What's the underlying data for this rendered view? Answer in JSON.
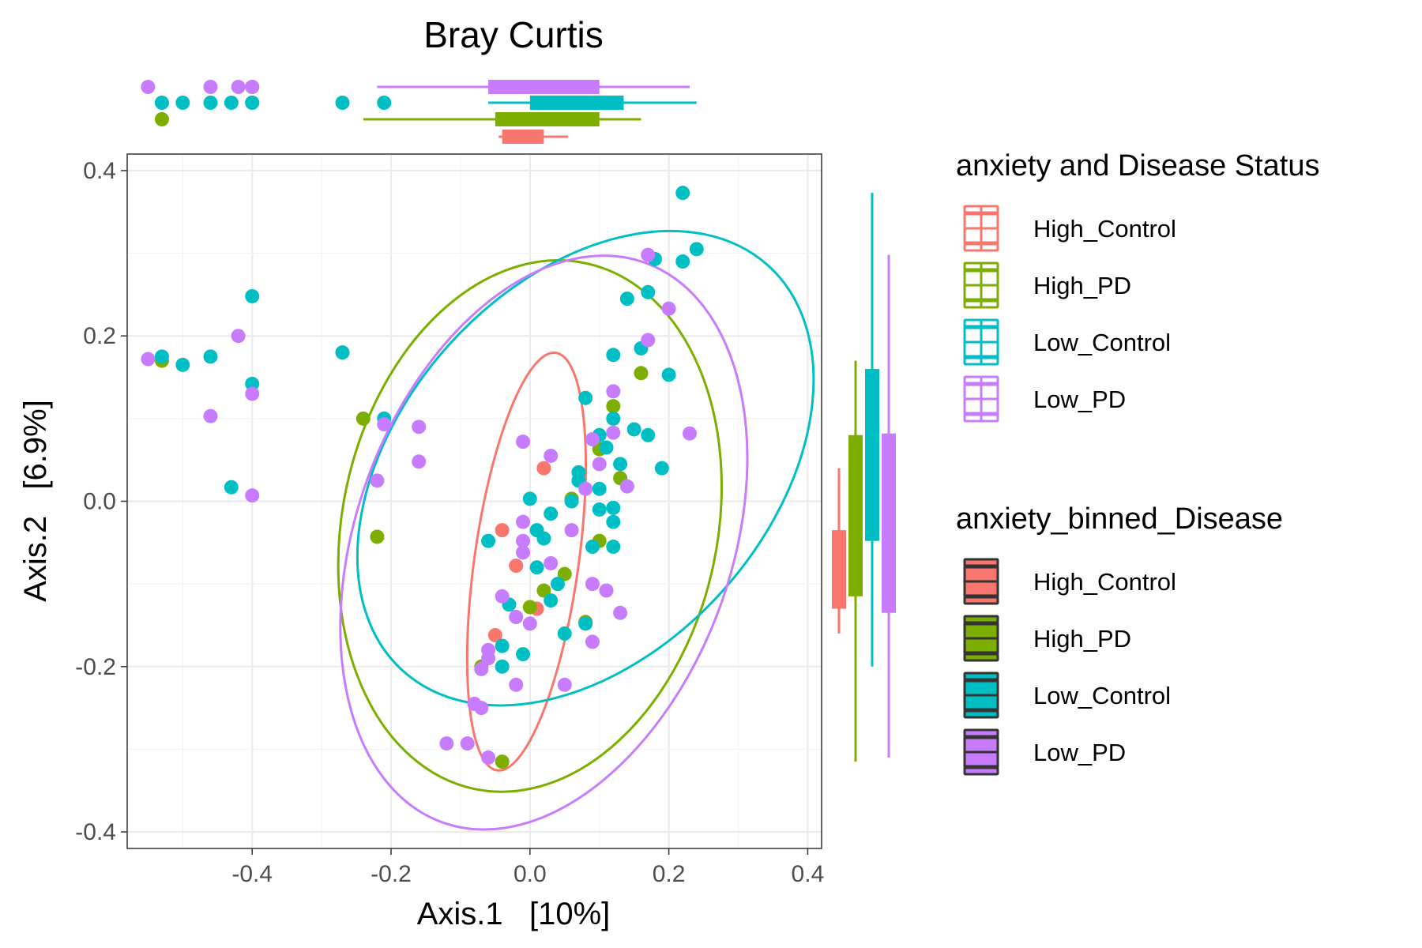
{
  "chart_data": {
    "type": "scatter",
    "title": "Bray Curtis",
    "xlabel": "Axis.1   [10%]",
    "ylabel": "Axis.2   [6.9%]",
    "xlim": [
      -0.58,
      0.42
    ],
    "ylim": [
      -0.42,
      0.42
    ],
    "x_ticks": [
      -0.4,
      -0.2,
      0.0,
      0.2,
      0.4
    ],
    "x_tick_labels": [
      "-0.4",
      "-0.2",
      "0.0",
      "0.2",
      "0.4"
    ],
    "y_ticks": [
      -0.4,
      -0.2,
      0.0,
      0.2,
      0.4
    ],
    "y_tick_labels": [
      "-0.4",
      "-0.2",
      "0.0",
      "0.2",
      "0.4"
    ],
    "grid": true,
    "legend_placement": "right",
    "legends": [
      {
        "title": "anxiety and Disease Status",
        "style": "outline",
        "items": [
          "High_Control",
          "High_PD",
          "Low_Control",
          "Low_PD"
        ]
      },
      {
        "title": "anxiety_binned_Disease",
        "style": "filled",
        "items": [
          "High_Control",
          "High_PD",
          "Low_Control",
          "Low_PD"
        ]
      }
    ],
    "series": [
      {
        "name": "High_Control",
        "color": "#F8766D",
        "points": [
          [
            0.02,
            0.04
          ],
          [
            -0.04,
            -0.035
          ],
          [
            -0.02,
            -0.078
          ],
          [
            0.01,
            -0.13
          ],
          [
            -0.05,
            -0.162
          ]
        ],
        "ellipse": {
          "center": [
            -0.005,
            -0.073
          ],
          "rx": 0.075,
          "ry": 0.255,
          "rotation_deg": 8
        },
        "box_x": {
          "whisker": [
            -0.045,
            0.055
          ],
          "box": [
            -0.04,
            0.02
          ],
          "median": 0.0
        },
        "box_y": {
          "whisker": [
            -0.16,
            0.04
          ],
          "box": [
            -0.13,
            -0.035
          ],
          "median": -0.08
        }
      },
      {
        "name": "High_PD",
        "color": "#7CAE00",
        "points": [
          [
            -0.53,
            0.17
          ],
          [
            -0.24,
            0.1
          ],
          [
            -0.22,
            -0.043
          ],
          [
            0.12,
            0.115
          ],
          [
            0.16,
            0.155
          ],
          [
            0.1,
            0.063
          ],
          [
            0.13,
            0.028
          ],
          [
            0.06,
            0.003
          ],
          [
            0.1,
            -0.048
          ],
          [
            0.05,
            -0.088
          ],
          [
            0.02,
            -0.108
          ],
          [
            0.0,
            -0.128
          ],
          [
            0.08,
            -0.146
          ],
          [
            -0.07,
            -0.2
          ],
          [
            -0.04,
            -0.315
          ]
        ],
        "outliers": [
          -0.53
        ],
        "ellipse": {
          "center": [
            0.0,
            -0.03
          ],
          "rx": 0.27,
          "ry": 0.325,
          "rotation_deg": 12
        },
        "box_x": {
          "whisker": [
            -0.24,
            0.16
          ],
          "box": [
            -0.05,
            0.1
          ],
          "median": 0.05
        },
        "box_y": {
          "whisker": [
            -0.315,
            0.17
          ],
          "box": [
            -0.115,
            0.08
          ],
          "median": 0.0
        }
      },
      {
        "name": "Low_Control",
        "color": "#00BFC4",
        "points": [
          [
            -0.53,
            0.175
          ],
          [
            -0.5,
            0.165
          ],
          [
            -0.46,
            0.175
          ],
          [
            -0.4,
            0.248
          ],
          [
            -0.4,
            0.142
          ],
          [
            -0.43,
            0.017
          ],
          [
            -0.27,
            0.18
          ],
          [
            -0.21,
            0.1
          ],
          [
            0.22,
            0.373
          ],
          [
            0.24,
            0.305
          ],
          [
            0.18,
            0.293
          ],
          [
            0.22,
            0.29
          ],
          [
            0.17,
            0.253
          ],
          [
            0.14,
            0.245
          ],
          [
            0.16,
            0.185
          ],
          [
            0.12,
            0.177
          ],
          [
            0.2,
            0.153
          ],
          [
            0.08,
            0.125
          ],
          [
            0.12,
            0.1
          ],
          [
            0.15,
            0.087
          ],
          [
            0.1,
            0.08
          ],
          [
            0.17,
            0.08
          ],
          [
            0.19,
            0.04
          ],
          [
            0.11,
            0.065
          ],
          [
            0.13,
            0.045
          ],
          [
            0.07,
            0.035
          ],
          [
            0.1,
            0.015
          ],
          [
            0.07,
            0.025
          ],
          [
            0.0,
            0.003
          ],
          [
            0.06,
            0.0
          ],
          [
            0.12,
            -0.025
          ],
          [
            0.1,
            -0.01
          ],
          [
            0.12,
            -0.008
          ],
          [
            0.03,
            -0.015
          ],
          [
            -0.06,
            -0.048
          ],
          [
            0.01,
            -0.035
          ],
          [
            0.02,
            -0.045
          ],
          [
            0.09,
            -0.055
          ],
          [
            0.12,
            -0.055
          ],
          [
            0.03,
            -0.12
          ],
          [
            0.04,
            -0.1
          ],
          [
            0.01,
            -0.08
          ],
          [
            -0.03,
            -0.125
          ],
          [
            0.05,
            -0.16
          ],
          [
            0.08,
            -0.148
          ],
          [
            -0.04,
            -0.175
          ],
          [
            -0.04,
            -0.2
          ],
          [
            -0.01,
            -0.185
          ]
        ],
        "outliers": [
          -0.53,
          -0.5,
          -0.46,
          -0.43,
          -0.4,
          -0.4,
          -0.27,
          -0.21
        ],
        "ellipse": {
          "center": [
            0.08,
            0.04
          ],
          "rx": 0.265,
          "ry": 0.33,
          "rotation_deg": 42
        },
        "box_x": {
          "whisker": [
            -0.06,
            0.24
          ],
          "box": [
            0.0,
            0.135
          ],
          "median": 0.07
        },
        "box_y": {
          "whisker": [
            -0.2,
            0.373
          ],
          "box": [
            -0.048,
            0.16
          ],
          "median": 0.015
        }
      },
      {
        "name": "Low_PD",
        "color": "#C77CFF",
        "points": [
          [
            -0.55,
            0.172
          ],
          [
            -0.42,
            0.2
          ],
          [
            -0.4,
            0.13
          ],
          [
            -0.46,
            0.103
          ],
          [
            -0.4,
            0.007
          ],
          [
            -0.21,
            0.093
          ],
          [
            -0.16,
            0.09
          ],
          [
            -0.16,
            0.048
          ],
          [
            -0.22,
            0.025
          ],
          [
            0.17,
            0.298
          ],
          [
            0.2,
            0.233
          ],
          [
            0.17,
            0.195
          ],
          [
            0.23,
            0.082
          ],
          [
            0.12,
            0.133
          ],
          [
            0.12,
            0.083
          ],
          [
            0.09,
            0.075
          ],
          [
            0.03,
            0.055
          ],
          [
            -0.01,
            0.072
          ],
          [
            0.1,
            0.045
          ],
          [
            0.08,
            0.015
          ],
          [
            0.14,
            0.018
          ],
          [
            -0.01,
            -0.048
          ],
          [
            -0.01,
            -0.062
          ],
          [
            -0.01,
            -0.025
          ],
          [
            0.06,
            -0.035
          ],
          [
            0.03,
            -0.075
          ],
          [
            -0.04,
            -0.115
          ],
          [
            0.09,
            -0.1
          ],
          [
            0.11,
            -0.108
          ],
          [
            0.13,
            -0.135
          ],
          [
            -0.02,
            -0.14
          ],
          [
            0.0,
            -0.148
          ],
          [
            0.09,
            -0.17
          ],
          [
            -0.06,
            -0.18
          ],
          [
            -0.06,
            -0.19
          ],
          [
            -0.07,
            -0.203
          ],
          [
            -0.02,
            -0.222
          ],
          [
            0.05,
            -0.222
          ],
          [
            -0.08,
            -0.245
          ],
          [
            -0.07,
            -0.25
          ],
          [
            -0.12,
            -0.293
          ],
          [
            -0.09,
            -0.293
          ],
          [
            -0.06,
            -0.31
          ]
        ],
        "outliers": [
          -0.55,
          -0.46,
          -0.42,
          -0.4,
          -0.4
        ],
        "ellipse": {
          "center": [
            0.02,
            -0.05
          ],
          "rx": 0.27,
          "ry": 0.36,
          "rotation_deg": 20
        },
        "box_x": {
          "whisker": [
            -0.22,
            0.23
          ],
          "box": [
            -0.06,
            0.1
          ],
          "median": 0.02
        },
        "box_y": {
          "whisker": [
            -0.31,
            0.298
          ],
          "box": [
            -0.135,
            0.082
          ],
          "median": -0.02
        }
      }
    ]
  }
}
